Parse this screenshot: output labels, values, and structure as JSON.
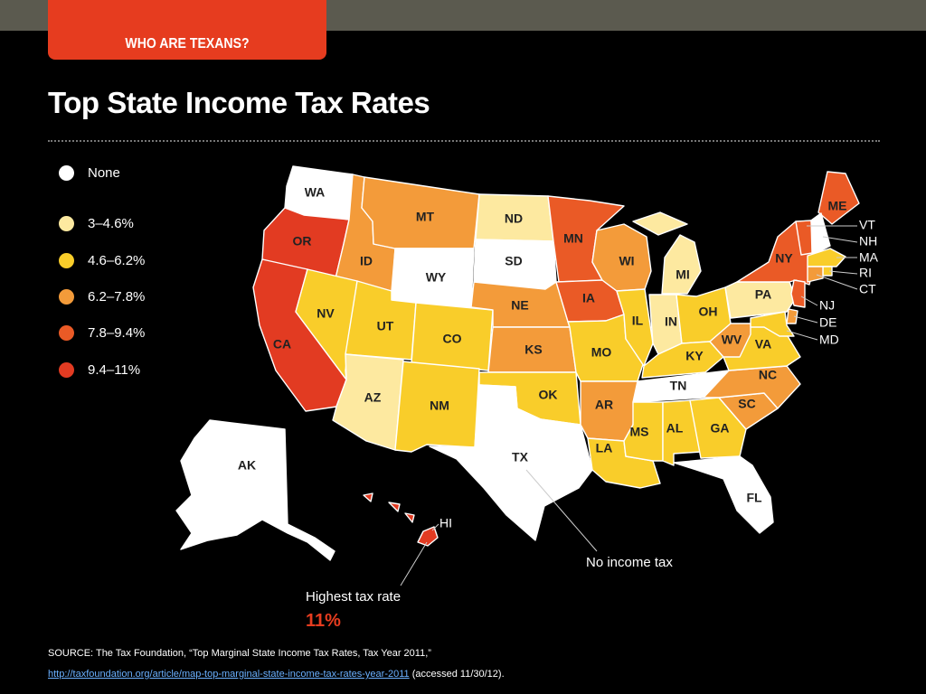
{
  "header": {
    "section_tab": "WHO ARE TEXANS?"
  },
  "title": "Top State Income Tax Rates",
  "legend": [
    {
      "label": "None",
      "color": "#ffffff"
    },
    {
      "label": "3–4.6%",
      "color": "#fde9a0"
    },
    {
      "label": "4.6–6.2%",
      "color": "#f9cd2a"
    },
    {
      "label": "6.2–7.8%",
      "color": "#f39b3a"
    },
    {
      "label": "7.8–9.4%",
      "color": "#ea5a26"
    },
    {
      "label": "9.4–11%",
      "color": "#e23b22"
    }
  ],
  "states": {
    "WA": {
      "label": "WA",
      "bracket": "None"
    },
    "OR": {
      "label": "OR",
      "bracket": "9.4–11%"
    },
    "CA": {
      "label": "CA",
      "bracket": "9.4–11%"
    },
    "ID": {
      "label": "ID",
      "bracket": "6.2–7.8%"
    },
    "NV": {
      "label": "NV",
      "bracket": "4.6–6.2%"
    },
    "MT": {
      "label": "MT",
      "bracket": "6.2–7.8%"
    },
    "WY": {
      "label": "WY",
      "bracket": "None"
    },
    "UT": {
      "label": "UT",
      "bracket": "4.6–6.2%"
    },
    "AZ": {
      "label": "AZ",
      "bracket": "3–4.6%"
    },
    "CO": {
      "label": "CO",
      "bracket": "4.6–6.2%"
    },
    "NM": {
      "label": "NM",
      "bracket": "4.6–6.2%"
    },
    "ND": {
      "label": "ND",
      "bracket": "3–4.6%"
    },
    "SD": {
      "label": "SD",
      "bracket": "None"
    },
    "NE": {
      "label": "NE",
      "bracket": "6.2–7.8%"
    },
    "KS": {
      "label": "KS",
      "bracket": "6.2–7.8%"
    },
    "OK": {
      "label": "OK",
      "bracket": "4.6–6.2%"
    },
    "TX": {
      "label": "TX",
      "bracket": "None"
    },
    "MN": {
      "label": "MN",
      "bracket": "7.8–9.4%"
    },
    "IA": {
      "label": "IA",
      "bracket": "7.8–9.4%"
    },
    "MO": {
      "label": "MO",
      "bracket": "4.6–6.2%"
    },
    "AR": {
      "label": "AR",
      "bracket": "6.2–7.8%"
    },
    "LA": {
      "label": "LA",
      "bracket": "4.6–6.2%"
    },
    "WI": {
      "label": "WI",
      "bracket": "6.2–7.8%"
    },
    "IL": {
      "label": "IL",
      "bracket": "4.6–6.2%"
    },
    "MI": {
      "label": "MI",
      "bracket": "3–4.6%"
    },
    "IN": {
      "label": "IN",
      "bracket": "3–4.6%"
    },
    "OH": {
      "label": "OH",
      "bracket": "4.6–6.2%"
    },
    "KY": {
      "label": "KY",
      "bracket": "4.6–6.2%"
    },
    "TN": {
      "label": "TN",
      "bracket": "None"
    },
    "MS": {
      "label": "MS",
      "bracket": "4.6–6.2%"
    },
    "AL": {
      "label": "AL",
      "bracket": "4.6–6.2%"
    },
    "GA": {
      "label": "GA",
      "bracket": "4.6–6.2%"
    },
    "FL": {
      "label": "FL",
      "bracket": "None"
    },
    "SC": {
      "label": "SC",
      "bracket": "6.2–7.8%"
    },
    "NC": {
      "label": "NC",
      "bracket": "6.2–7.8%"
    },
    "VA": {
      "label": "VA",
      "bracket": "4.6–6.2%"
    },
    "WV": {
      "label": "WV",
      "bracket": "6.2–7.8%"
    },
    "PA": {
      "label": "PA",
      "bracket": "3–4.6%"
    },
    "NY": {
      "label": "NY",
      "bracket": "7.8–9.4%"
    },
    "ME": {
      "label": "ME",
      "bracket": "7.8–9.4%"
    },
    "VT": {
      "label": "VT",
      "bracket": "7.8–9.4%"
    },
    "NH": {
      "label": "NH",
      "bracket": "None"
    },
    "MA": {
      "label": "MA",
      "bracket": "4.6–6.2%"
    },
    "RI": {
      "label": "RI",
      "bracket": "4.6–6.2%"
    },
    "CT": {
      "label": "CT",
      "bracket": "6.2–7.8%"
    },
    "NJ": {
      "label": "NJ",
      "bracket": "7.8–9.4%"
    },
    "DE": {
      "label": "DE",
      "bracket": "6.2–7.8%"
    },
    "MD": {
      "label": "MD",
      "bracket": "4.6–6.2%"
    },
    "AK": {
      "label": "AK",
      "bracket": "None"
    },
    "HI": {
      "label": "HI",
      "bracket": "9.4–11%"
    }
  },
  "callouts": {
    "no_income_tax": "No income tax",
    "highest_rate_label": "Highest tax rate",
    "highest_rate_value": "11%"
  },
  "source": {
    "text": "SOURCE:  The Tax Foundation, “Top Marginal State Income Tax Rates, Tax  Year 2011,”",
    "link": "http://taxfoundation.org/article/map-top-marginal-state-income-tax-rates-year-2011",
    "accessed": " (accessed 11/30/12)."
  }
}
